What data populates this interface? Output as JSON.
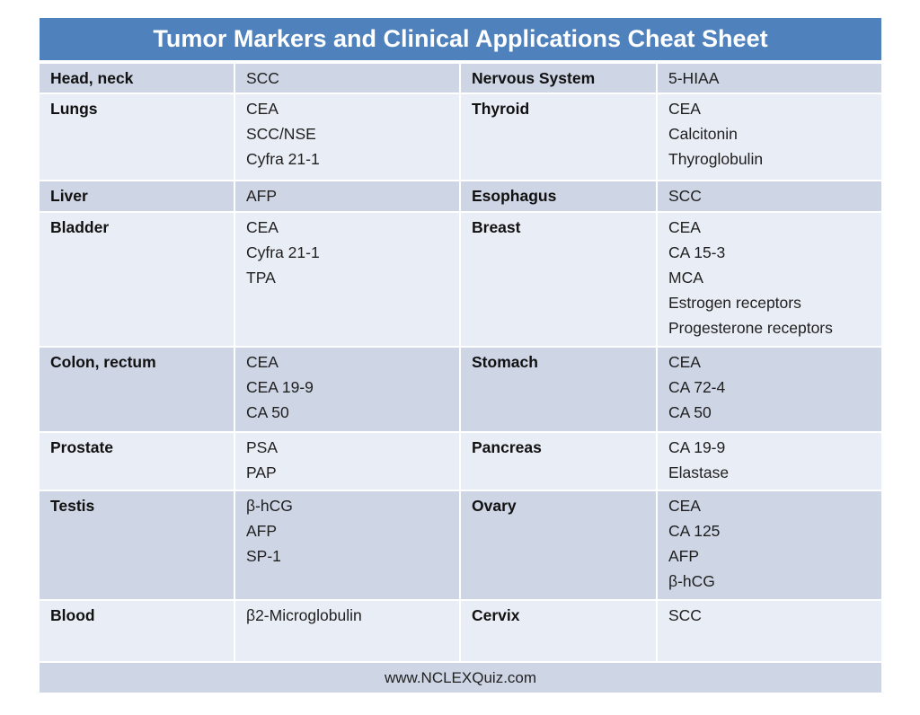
{
  "title": "Tumor Markers and Clinical Applications Cheat Sheet",
  "footer": "www.NCLEXQuiz.com",
  "colors": {
    "header_bg": "#4f81bd",
    "row_dark": "#ced5e5",
    "row_light": "#e9edf5",
    "footer_bg": "#ced5e5",
    "title_text": "#ffffff",
    "body_text": "#1f1f1f"
  },
  "table": {
    "columns": [
      "organ",
      "markers",
      "organ",
      "markers"
    ],
    "rows": [
      {
        "shade": "dark",
        "left_organ": "Head, neck",
        "left_markers": [
          "SCC"
        ],
        "right_organ": "Nervous System",
        "right_markers": [
          "5-HIAA"
        ]
      },
      {
        "shade": "light",
        "left_organ": "Lungs",
        "left_markers": [
          "CEA",
          "SCC/NSE",
          "Cyfra 21-1"
        ],
        "right_organ": "Thyroid",
        "right_markers": [
          "CEA",
          "Calcitonin",
          "Thyroglobulin"
        ]
      },
      {
        "shade": "dark",
        "left_organ": "Liver",
        "left_markers": [
          "AFP"
        ],
        "right_organ": "Esophagus",
        "right_markers": [
          "SCC"
        ]
      },
      {
        "shade": "light",
        "left_organ": "Bladder",
        "left_markers": [
          "CEA",
          "Cyfra 21-1",
          "TPA"
        ],
        "right_organ": "Breast",
        "right_markers": [
          "CEA",
          "CA 15-3",
          "MCA",
          "Estrogen receptors",
          "Progesterone receptors"
        ]
      },
      {
        "shade": "dark",
        "left_organ": "Colon, rectum",
        "left_markers": [
          "CEA",
          "CEA 19-9",
          "CA 50"
        ],
        "right_organ": "Stomach",
        "right_markers": [
          "CEA",
          "CA 72-4",
          "CA 50"
        ]
      },
      {
        "shade": "light",
        "left_organ": "Prostate",
        "left_markers": [
          "PSA",
          "PAP"
        ],
        "right_organ": "Pancreas",
        "right_markers": [
          "CA 19-9",
          "Elastase"
        ]
      },
      {
        "shade": "dark",
        "left_organ": "Testis",
        "left_markers": [
          "β-hCG",
          "AFP",
          "SP-1"
        ],
        "right_organ": "Ovary",
        "right_markers": [
          "CEA",
          "CA 125",
          "AFP",
          "β-hCG"
        ]
      },
      {
        "shade": "light",
        "left_organ": "Blood",
        "left_markers": [
          "β2-Microglobulin"
        ],
        "right_organ": "Cervix",
        "right_markers": [
          "SCC"
        ]
      }
    ]
  }
}
